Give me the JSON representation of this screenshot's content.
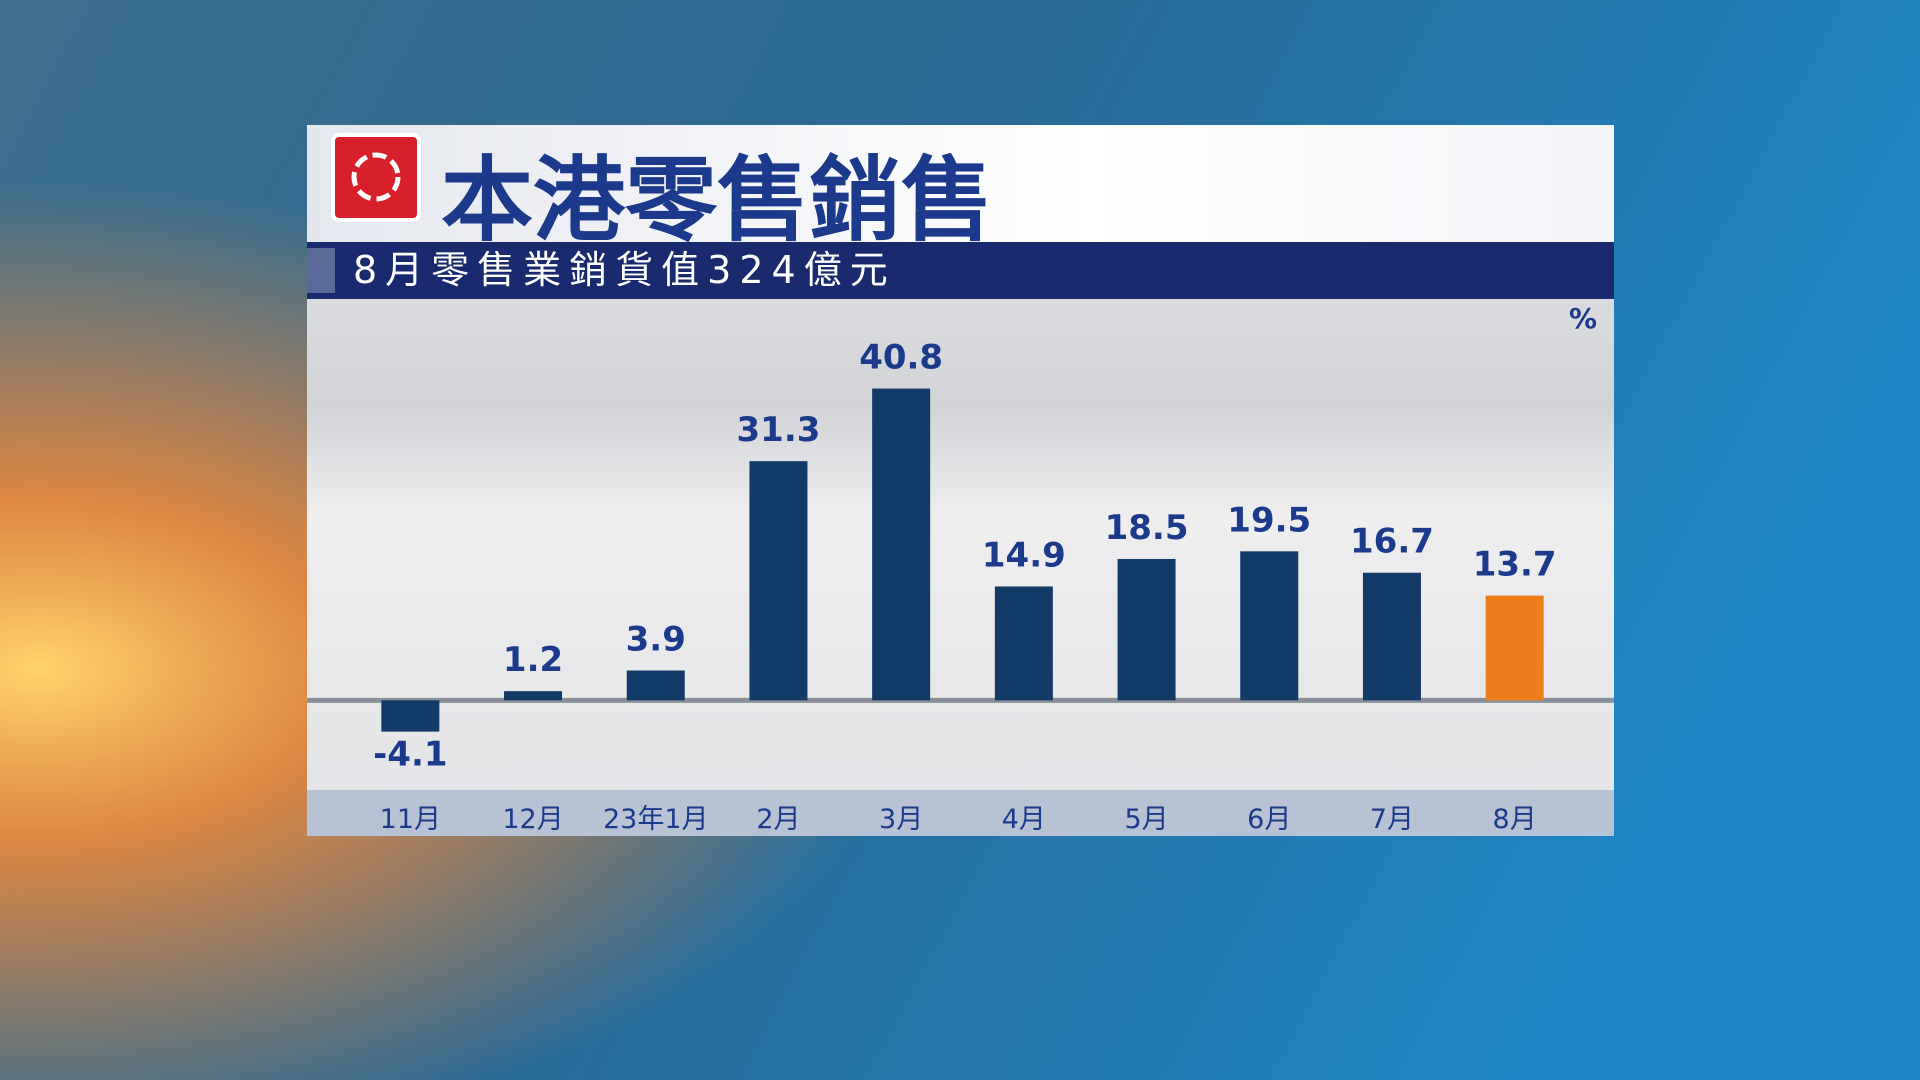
{
  "chart_data": {
    "type": "bar",
    "title": "本港零售銷售",
    "subtitle": "8月零售業銷貨值324億元",
    "unit": "%",
    "categories": [
      "11月",
      "12月",
      "23年1月",
      "2月",
      "3月",
      "4月",
      "5月",
      "6月",
      "7月",
      "8月"
    ],
    "values": [
      -4.1,
      1.2,
      3.9,
      31.3,
      40.8,
      14.9,
      18.5,
      19.5,
      16.7,
      13.7
    ],
    "colors": [
      "#123a68",
      "#123a68",
      "#123a68",
      "#123a68",
      "#123a68",
      "#123a68",
      "#123a68",
      "#123a68",
      "#123a68",
      "#ee7d1c"
    ],
    "ylim": [
      -12,
      52
    ]
  }
}
